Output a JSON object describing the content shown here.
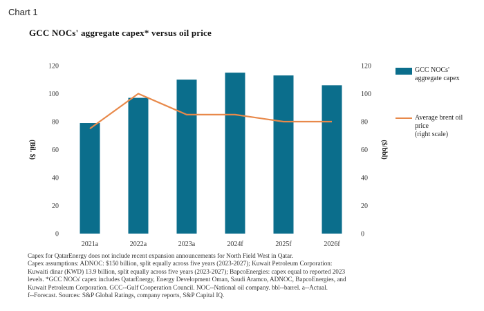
{
  "header": {
    "chart_label": "Chart 1",
    "title": "GCC NOCs' aggregate capex* versus oil price"
  },
  "chart_data": {
    "type": "bar",
    "categories": [
      "2021a",
      "2022a",
      "2023a",
      "2024f",
      "2025f",
      "2026f"
    ],
    "series": [
      {
        "name": "GCC NOCs' aggregate capex",
        "kind": "bar",
        "axis": "left",
        "values": [
          79,
          97,
          110,
          115,
          113,
          106
        ],
        "color": "#0b6e8c"
      },
      {
        "name": "Average brent oil price (right scale)",
        "kind": "line",
        "axis": "right",
        "values": [
          75,
          100,
          85,
          85,
          80,
          80
        ],
        "color": "#e8894a"
      }
    ],
    "ylabel_left": "(Bil. $)",
    "ylabel_right": "($/bbl)",
    "ylim_left": [
      0,
      120
    ],
    "ylim_right": [
      0,
      120
    ],
    "yticks": [
      0,
      20,
      40,
      60,
      80,
      100,
      120
    ],
    "grid": false,
    "legend_position": "right"
  },
  "legend": {
    "bar_label": "GCC NOCs'\naggregate capex",
    "line_label": "Average brent oil\nprice\n(right scale)"
  },
  "notes": [
    "Capex for QatarEnergy does not include recent expansion announcements for North Field West in Qatar.",
    "Capex assumptions: ADNOC: $150 billion, split equally across five years (2023-2027); Kuwait Petroleum Corporation:",
    "Kuwaiti dinar (KWD) 13.9 billion, split equally across five years (2023-2027); BapcoEnergies: capex equal to reported 2023",
    "levels. *GCC NOCs' capex includes QatarEnergy, Energy Development Oman, Saudi Aramco, ADNOC, BapcoEnergies, and",
    "Kuwait Petroleum Corporation. GCC--Gulf Cooperation Council. NOC--National oil company. bbl--barrel. a--Actual.",
    "f--Forecast. Sources: S&P Global Ratings, company reports, S&P Capital IQ."
  ]
}
